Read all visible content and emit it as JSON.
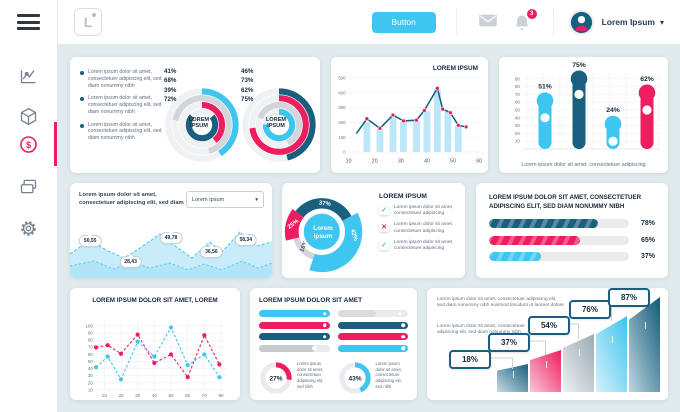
{
  "colors": {
    "cyan": "#3EC6F0",
    "teal": "#19607E",
    "pink": "#EE1D5F",
    "gray": "#D2D6DA",
    "grayDark": "#C6CBD0",
    "grayLight": "#D8DCDF",
    "barFill": "#BDE7F8"
  },
  "icons": {
    "caret_down": "▾",
    "check": "✓",
    "cross": "✕",
    "dollar": "$"
  },
  "header": {
    "logo_text": "L",
    "button_label": "Button",
    "notification_count": "3",
    "user_name": "Lorem Ipsum"
  },
  "card_a": {
    "legend": [
      "Lorem ipsum dolor sit amet, consectetuer adipiscing elit, sed diam nonummy nibh",
      "Lorem ipsum dolor sit amet, consectetuer adipiscing elit, sed diam nonummy nibh",
      "Lorem ipsum dolor sit amet, consectetuer adipiscing elit, sed diam nonummy nibh"
    ],
    "donut1": {
      "center": "LOREM IPSUM",
      "labels": [
        "41%",
        "68%",
        "39%",
        "72%"
      ]
    },
    "donut2": {
      "center": "LOREM IPSUM",
      "labels": [
        "46%",
        "73%",
        "62%",
        "75%"
      ]
    }
  },
  "card_d": {
    "heading": "Lorem ipsum dolor sit amet, consectetuer adipiscing elit, sed diam",
    "dropdown_value": "Lorem Ipsum"
  },
  "card_e": {
    "heading": "LOREM IPSUM",
    "center_line1": "Lorem",
    "center_line2": "Ipsum",
    "items": [
      {
        "glyph": "✓",
        "kind": "check",
        "text": "Lorem ipsum dolor sit amet, consectetuer adipiscing"
      },
      {
        "glyph": "✕",
        "kind": "cross",
        "text": "Lorem ipsum dolor sit amet, consectetuer adipiscing"
      },
      {
        "glyph": "✓",
        "kind": "check",
        "text": "Lorem ipsum dolor sit amet, consectetuer adipiscing"
      }
    ]
  },
  "card_f": {
    "title": "LOREM IPSUM DOLOR SIT AMET, CONSECTETUER ADIPISCING ELIT, SED DIAM NONUMMY NIBH"
  },
  "card_h": {
    "title": "LOREM IPSUM DOLOR SIT AMET"
  },
  "card_i": {
    "p1": "Lorem ipsum dolor sit amet, consectetuer adipiscing elit, sed diam nonummy nibh euismod tincidunt ut laoreet dolore",
    "p2": "Lorem ipsum dolor sit amet, consectetuer adipiscing elit, sed diam nonummy nibh"
  },
  "chart_data": {
    "ring_donut_1": {
      "type": "donut",
      "center": "LOREM IPSUM",
      "rings": [
        {
          "color": "cyan",
          "pct": 41
        },
        {
          "color": "gray",
          "pct": 68
        },
        {
          "color": "pink",
          "pct": 39
        },
        {
          "color": "teal",
          "pct": 72
        }
      ],
      "starts": [
        -90,
        -170,
        -90,
        -40
      ]
    },
    "ring_donut_2": {
      "type": "donut",
      "center": "LOREM IPSUM",
      "rings": [
        {
          "color": "teal",
          "pct": 46
        },
        {
          "color": "pink",
          "pct": 73
        },
        {
          "color": "gray",
          "pct": 62
        },
        {
          "color": "cyan",
          "pct": 75
        }
      ],
      "starts": [
        -90,
        -90,
        -160,
        -90
      ]
    },
    "line_bar": {
      "type": "line",
      "title": "LOREM IPSUM",
      "x_ticks": [
        10,
        20,
        30,
        40,
        50,
        60
      ],
      "y_ticks": [
        0,
        100,
        200,
        300,
        400,
        500
      ],
      "x_range": [
        10,
        60
      ],
      "y_range": [
        0,
        500
      ],
      "line": [
        [
          13,
          125
        ],
        [
          17,
          225
        ],
        [
          22,
          160
        ],
        [
          27,
          250
        ],
        [
          31,
          210
        ],
        [
          36,
          215
        ],
        [
          39,
          280
        ],
        [
          44,
          430
        ],
        [
          46,
          290
        ],
        [
          49,
          265
        ],
        [
          52,
          180
        ],
        [
          55,
          170
        ]
      ],
      "bars": [
        [
          17,
          200
        ],
        [
          22,
          155
        ],
        [
          27,
          245
        ],
        [
          31,
          205
        ],
        [
          36,
          210
        ],
        [
          40,
          275
        ],
        [
          44,
          425
        ],
        [
          48,
          270
        ],
        [
          52,
          175
        ]
      ]
    },
    "lollipop": {
      "type": "bar",
      "y_ticks": [
        10,
        20,
        30,
        40,
        50,
        60,
        70,
        80,
        90
      ],
      "caption": "Lorem ipsum dolor sit amet, consectetuer adipiscing",
      "bars": [
        {
          "label": "51%",
          "value": 62,
          "ring": 40,
          "color": "cyan"
        },
        {
          "label": "75%",
          "value": 90,
          "ring": 70,
          "color": "teal"
        },
        {
          "label": "24%",
          "value": 32,
          "ring": 10,
          "color": "cyan"
        },
        {
          "label": "62%",
          "value": 72,
          "ring": 50,
          "color": "pink"
        }
      ]
    },
    "area": {
      "type": "area",
      "upper": [
        [
          0,
          28
        ],
        [
          20,
          14
        ],
        [
          36,
          24
        ],
        [
          54,
          32
        ],
        [
          70,
          22
        ],
        [
          90,
          8
        ],
        [
          108,
          22
        ],
        [
          122,
          32
        ],
        [
          140,
          16
        ],
        [
          152,
          26
        ],
        [
          170,
          6
        ],
        [
          186,
          20
        ],
        [
          202,
          16
        ]
      ],
      "lower": [
        [
          0,
          40
        ],
        [
          24,
          35
        ],
        [
          44,
          43
        ],
        [
          60,
          36
        ],
        [
          80,
          42
        ],
        [
          100,
          37
        ],
        [
          118,
          44
        ],
        [
          134,
          38
        ],
        [
          152,
          44
        ],
        [
          172,
          35
        ],
        [
          188,
          42
        ],
        [
          202,
          37
        ]
      ],
      "tags": [
        {
          "t": "50,55",
          "x": 10,
          "y": 52
        },
        {
          "t": "28,43",
          "x": 30,
          "y": 73
        },
        {
          "t": "49,78",
          "x": 50,
          "y": 49
        },
        {
          "t": "36,56",
          "x": 70,
          "y": 63
        },
        {
          "t": "58,34",
          "x": 87,
          "y": 51
        }
      ]
    },
    "pie": {
      "type": "pie",
      "segments": [
        {
          "label": "37%",
          "pct": 37,
          "color": "teal",
          "a0": -52,
          "a1": 62,
          "r": 39,
          "la": 6,
          "lr": 31,
          "rot": 8,
          "lcolor": "#ffffff"
        },
        {
          "label": "42%",
          "pct": 42,
          "color": "cyan",
          "a0": 62,
          "a1": 198,
          "r": 47,
          "la": 97,
          "lr": 36,
          "rot": 72,
          "lcolor": "#ffffff"
        },
        {
          "label": "16%",
          "pct": 16,
          "color": "gray",
          "a0": 198,
          "a1": 256,
          "r": 34,
          "la": 228,
          "lr": 26,
          "rot": -70,
          "lcolor": "#4A5664"
        },
        {
          "label": "25%",
          "pct": 25,
          "color": "pink",
          "a0": 256,
          "a1": 308,
          "r": 43,
          "la": 283,
          "lr": 33,
          "rot": -38,
          "lcolor": "#ffffff"
        }
      ]
    },
    "progress": {
      "type": "bar",
      "bars": [
        {
          "label": "78%",
          "pct": 78,
          "color": "teal"
        },
        {
          "label": "65%",
          "pct": 65,
          "color": "pink"
        },
        {
          "label": "37%",
          "pct": 37,
          "color": "cyan"
        }
      ]
    },
    "dual_line": {
      "type": "line",
      "title": "LOREM IPSUM DOLOR SIT AMET, LOREM",
      "x_ticks": [
        10,
        20,
        30,
        40,
        50,
        60,
        70,
        80
      ],
      "y_ticks": [
        10,
        20,
        30,
        40,
        50,
        60,
        70,
        80,
        90,
        100
      ],
      "series": [
        {
          "name": "pink",
          "color": "pink",
          "points": [
            [
              5,
              70
            ],
            [
              12,
              73
            ],
            [
              20,
              61
            ],
            [
              30,
              88
            ],
            [
              40,
              48
            ],
            [
              50,
              60
            ],
            [
              60,
              28
            ],
            [
              70,
              87
            ],
            [
              79,
              46
            ]
          ]
        },
        {
          "name": "cyan",
          "color": "cyan",
          "points": [
            [
              5,
              42
            ],
            [
              12,
              57
            ],
            [
              20,
              25
            ],
            [
              30,
              78
            ],
            [
              40,
              57
            ],
            [
              50,
              98
            ],
            [
              60,
              45
            ],
            [
              70,
              60
            ],
            [
              79,
              28
            ]
          ]
        }
      ]
    },
    "sliders": {
      "left": [
        {
          "color": "cyan",
          "pct": 100,
          "dot": 93
        },
        {
          "color": "pink",
          "pct": 100,
          "dot": 93
        },
        {
          "color": "teal",
          "pct": 100,
          "dot": 93
        },
        {
          "color": "grayDark",
          "pct": 80,
          "dot": 78
        }
      ],
      "right": [
        {
          "color": "grayLight",
          "pct": 55,
          "dot": 88
        },
        {
          "color": "teal",
          "pct": 100,
          "dot": 93
        },
        {
          "color": "pink",
          "pct": 100,
          "dot": 93
        },
        {
          "color": "cyan",
          "pct": 100,
          "dot": 93
        }
      ]
    },
    "gauges": [
      {
        "label": "27%",
        "pct": 27,
        "color": "pink",
        "text": "Lorem ipsum dolor sit amet, consectetuer adipiscing elit, sed nibh"
      },
      {
        "label": "43%",
        "pct": 43,
        "color": "cyan",
        "text": "Lorem ipsum dolor sit amet, consectetuer adipiscing elit, sed nibh"
      }
    ],
    "swoosh": {
      "type": "bar",
      "labels": [
        "18%",
        "37%",
        "54%",
        "76%",
        "87%"
      ],
      "heights": [
        28,
        42,
        58,
        76,
        95
      ],
      "colors": [
        [
          "#c2d9e3",
          "#19607e"
        ],
        [
          "#f9c6d5",
          "#ee1d5f"
        ],
        [
          "#eef1f3",
          "#9aa9b2"
        ],
        [
          "#d6f1fb",
          "#3ec5ef"
        ],
        [
          "#bcd7e1",
          "#135a78"
        ]
      ]
    }
  }
}
